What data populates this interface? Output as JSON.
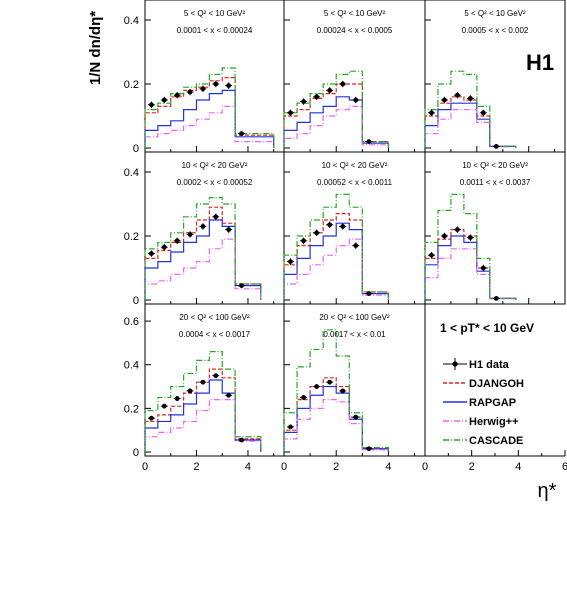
{
  "figure": {
    "y_axis_label": "1/N dn/dη*",
    "x_axis_label": "η*",
    "experiment_logo": "H1",
    "pt_range_text": "1 < pT* < 10 GeV"
  },
  "legend": [
    {
      "key": "h1",
      "label": "H1 data",
      "color": "#000000",
      "style": "points"
    },
    {
      "key": "djangoh",
      "label": "DJANGOH",
      "color": "#dd2222",
      "style": "dashed"
    },
    {
      "key": "rapgap",
      "label": "RAPGAP",
      "color": "#2233dd",
      "style": "solid"
    },
    {
      "key": "herwig",
      "label": "Herwig++",
      "color": "#ee66ee",
      "style": "dashdot"
    },
    {
      "key": "cascade",
      "label": "CASCADE",
      "color": "#22aa22",
      "style": "dashdot"
    }
  ],
  "chart_data": [
    {
      "type": "line",
      "q2_text": "5 < Q² < 10 GeV²",
      "x_text": "0.0001 < x < 0.00024",
      "bin_edges": [
        0,
        0.5,
        1,
        1.5,
        2,
        2.5,
        3,
        3.5,
        4,
        4.5,
        5
      ],
      "ylim": [
        0,
        0.45
      ],
      "yticks": [
        0,
        0.2,
        0.4
      ],
      "xticks": [
        0,
        2,
        4
      ],
      "series": [
        {
          "key": "h1",
          "values": [
            0.135,
            0.15,
            0.165,
            0.175,
            0.185,
            0.2,
            0.195,
            0.045,
            null,
            null
          ],
          "errors": [
            0.01,
            0.01,
            0.01,
            0.01,
            0.01,
            0.01,
            0.01,
            0.004,
            null,
            null
          ]
        },
        {
          "key": "djangoh",
          "values": [
            0.11,
            0.13,
            0.16,
            0.18,
            0.19,
            0.21,
            0.22,
            0.04,
            0.04,
            0.04
          ]
        },
        {
          "key": "rapgap",
          "values": [
            0.055,
            0.07,
            0.085,
            0.12,
            0.15,
            0.17,
            0.18,
            0.035,
            0.035,
            0.035
          ]
        },
        {
          "key": "herwig",
          "values": [
            0.035,
            0.045,
            0.055,
            0.07,
            0.09,
            0.11,
            0.13,
            0.02,
            0.02,
            0.02
          ]
        },
        {
          "key": "cascade",
          "values": [
            0.12,
            0.14,
            0.17,
            0.19,
            0.2,
            0.23,
            0.25,
            0.045,
            0.045,
            0.045
          ]
        }
      ]
    },
    {
      "type": "line",
      "q2_text": "5 < Q² < 10 GeV²",
      "x_text": "0.00024 < x < 0.0005",
      "bin_edges": [
        0,
        0.5,
        1,
        1.5,
        2,
        2.5,
        3,
        3.5,
        4,
        4.5,
        5
      ],
      "ylim": [
        0,
        0.45
      ],
      "yticks": [
        0,
        0.2,
        0.4
      ],
      "xticks": [
        0,
        2,
        4
      ],
      "series": [
        {
          "key": "h1",
          "values": [
            0.11,
            0.145,
            0.16,
            0.18,
            0.2,
            0.15,
            0.02
          ],
          "errors": [
            0.01,
            0.01,
            0.01,
            0.01,
            0.01,
            0.01,
            0.004
          ]
        },
        {
          "key": "djangoh",
          "values": [
            0.1,
            0.12,
            0.155,
            0.17,
            0.2,
            0.2,
            0.02,
            0.02
          ]
        },
        {
          "key": "rapgap",
          "values": [
            0.055,
            0.08,
            0.11,
            0.13,
            0.16,
            0.15,
            0.015,
            0.015
          ]
        },
        {
          "key": "herwig",
          "values": [
            0.03,
            0.045,
            0.07,
            0.1,
            0.12,
            0.13,
            0.01,
            0.01
          ]
        },
        {
          "key": "cascade",
          "values": [
            0.11,
            0.14,
            0.17,
            0.2,
            0.23,
            0.24,
            0.02,
            0.02
          ]
        }
      ]
    },
    {
      "type": "line",
      "q2_text": "5 < Q² < 10 GeV²",
      "x_text": "0.0005 < x < 0.002",
      "bin_edges": [
        0,
        0.5,
        1,
        1.5,
        2,
        2.5,
        3,
        3.5,
        4,
        4.5,
        5
      ],
      "ylim": [
        0,
        0.45
      ],
      "yticks": [
        0,
        0.2,
        0.4
      ],
      "xticks": [
        0,
        2,
        4
      ],
      "series": [
        {
          "key": "h1",
          "values": [
            0.11,
            0.15,
            0.165,
            0.155,
            0.11,
            0.005
          ],
          "errors": [
            0.01,
            0.01,
            0.01,
            0.01,
            0.01,
            0.003
          ]
        },
        {
          "key": "djangoh",
          "values": [
            0.1,
            0.14,
            0.16,
            0.15,
            0.1,
            0.005,
            0.005
          ]
        },
        {
          "key": "rapgap",
          "values": [
            0.07,
            0.12,
            0.14,
            0.14,
            0.09,
            0.005,
            0.005
          ]
        },
        {
          "key": "herwig",
          "values": [
            0.045,
            0.09,
            0.12,
            0.12,
            0.08,
            0.004,
            0.004
          ]
        },
        {
          "key": "cascade",
          "values": [
            0.12,
            0.2,
            0.24,
            0.23,
            0.13,
            0.005,
            0.005
          ]
        }
      ]
    },
    {
      "type": "line",
      "q2_text": "10 < Q² < 20 GeV²",
      "x_text": "0.0002 < x < 0.00052",
      "bin_edges": [
        0,
        0.5,
        1,
        1.5,
        2,
        2.5,
        3,
        3.5,
        4,
        4.5,
        5
      ],
      "ylim": [
        0,
        0.45
      ],
      "yticks": [
        0,
        0.2,
        0.4
      ],
      "xticks": [
        0,
        2,
        4
      ],
      "series": [
        {
          "key": "h1",
          "values": [
            0.145,
            0.165,
            0.185,
            0.205,
            0.23,
            0.26,
            0.22,
            0.045
          ],
          "errors": [
            0.01,
            0.01,
            0.01,
            0.01,
            0.01,
            0.01,
            0.01,
            0.004
          ]
        },
        {
          "key": "djangoh",
          "values": [
            0.13,
            0.155,
            0.18,
            0.21,
            0.25,
            0.29,
            0.24,
            0.05,
            0.05
          ]
        },
        {
          "key": "rapgap",
          "values": [
            0.1,
            0.12,
            0.15,
            0.18,
            0.2,
            0.25,
            0.23,
            0.045,
            0.045
          ]
        },
        {
          "key": "herwig",
          "values": [
            0.05,
            0.06,
            0.08,
            0.1,
            0.12,
            0.16,
            0.19,
            0.035,
            0.035
          ]
        },
        {
          "key": "cascade",
          "values": [
            0.16,
            0.18,
            0.21,
            0.26,
            0.3,
            0.32,
            0.3,
            0.05,
            0.05
          ]
        }
      ]
    },
    {
      "type": "line",
      "q2_text": "10 < Q² < 20 GeV²",
      "x_text": "0.00052 < x < 0.0011",
      "bin_edges": [
        0,
        0.5,
        1,
        1.5,
        2,
        2.5,
        3,
        3.5,
        4,
        4.5,
        5
      ],
      "ylim": [
        0,
        0.45
      ],
      "yticks": [
        0,
        0.2,
        0.4
      ],
      "xticks": [
        0,
        2,
        4
      ],
      "series": [
        {
          "key": "h1",
          "values": [
            0.12,
            0.185,
            0.21,
            0.235,
            0.23,
            0.17,
            0.02
          ],
          "errors": [
            0.01,
            0.01,
            0.01,
            0.01,
            0.01,
            0.01,
            0.004
          ]
        },
        {
          "key": "djangoh",
          "values": [
            0.11,
            0.17,
            0.21,
            0.25,
            0.27,
            0.25,
            0.025,
            0.025
          ]
        },
        {
          "key": "rapgap",
          "values": [
            0.08,
            0.13,
            0.17,
            0.2,
            0.24,
            0.22,
            0.02,
            0.02
          ]
        },
        {
          "key": "herwig",
          "values": [
            0.05,
            0.08,
            0.11,
            0.14,
            0.17,
            0.19,
            0.015,
            0.015
          ]
        },
        {
          "key": "cascade",
          "values": [
            0.14,
            0.2,
            0.25,
            0.29,
            0.33,
            0.29,
            0.025,
            0.025
          ]
        }
      ]
    },
    {
      "type": "line",
      "q2_text": "10 < Q² < 20 GeV²",
      "x_text": "0.0011 < x < 0.0037",
      "bin_edges": [
        0,
        0.5,
        1,
        1.5,
        2,
        2.5,
        3,
        3.5,
        4,
        4.5,
        5
      ],
      "ylim": [
        0,
        0.45
      ],
      "yticks": [
        0,
        0.2,
        0.4
      ],
      "xticks": [
        0,
        2,
        4
      ],
      "series": [
        {
          "key": "h1",
          "values": [
            0.14,
            0.2,
            0.22,
            0.195,
            0.1,
            0.005
          ],
          "errors": [
            0.01,
            0.01,
            0.01,
            0.01,
            0.01,
            0.003
          ]
        },
        {
          "key": "djangoh",
          "values": [
            0.13,
            0.19,
            0.22,
            0.2,
            0.1,
            0.005,
            0.005
          ]
        },
        {
          "key": "rapgap",
          "values": [
            0.11,
            0.17,
            0.2,
            0.18,
            0.09,
            0.005,
            0.005
          ]
        },
        {
          "key": "herwig",
          "values": [
            0.07,
            0.13,
            0.16,
            0.16,
            0.08,
            0.004,
            0.004
          ]
        },
        {
          "key": "cascade",
          "values": [
            0.18,
            0.28,
            0.33,
            0.27,
            0.13,
            0.005,
            0.005
          ]
        }
      ]
    },
    {
      "type": "line",
      "q2_text": "20 < Q² < 100 GeV²",
      "x_text": "0.0004 < x < 0.0017",
      "bin_edges": [
        0,
        0.5,
        1,
        1.5,
        2,
        2.5,
        3,
        3.5,
        4,
        4.5,
        5
      ],
      "ylim": [
        0,
        0.66
      ],
      "yticks": [
        0,
        0.2,
        0.4,
        0.6
      ],
      "xticks": [
        0,
        2,
        4
      ],
      "series": [
        {
          "key": "h1",
          "values": [
            0.155,
            0.21,
            0.245,
            0.28,
            0.32,
            0.35,
            0.26,
            0.055
          ],
          "errors": [
            0.01,
            0.01,
            0.01,
            0.01,
            0.01,
            0.01,
            0.01,
            0.005
          ]
        },
        {
          "key": "djangoh",
          "values": [
            0.14,
            0.17,
            0.21,
            0.27,
            0.32,
            0.38,
            0.34,
            0.06,
            0.06
          ]
        },
        {
          "key": "rapgap",
          "values": [
            0.11,
            0.14,
            0.17,
            0.22,
            0.27,
            0.33,
            0.27,
            0.055,
            0.055
          ]
        },
        {
          "key": "herwig",
          "values": [
            0.07,
            0.09,
            0.11,
            0.14,
            0.19,
            0.24,
            0.24,
            0.05,
            0.05
          ]
        },
        {
          "key": "cascade",
          "values": [
            0.19,
            0.25,
            0.3,
            0.36,
            0.42,
            0.46,
            0.38,
            0.07,
            0.07
          ]
        }
      ]
    },
    {
      "type": "line",
      "q2_text": "20 < Q² < 100 GeV²",
      "x_text": "0.0017 < x < 0.01",
      "bin_edges": [
        0,
        0.5,
        1,
        1.5,
        2,
        2.5,
        3,
        3.5,
        4,
        4.5,
        5
      ],
      "ylim": [
        0,
        0.66
      ],
      "yticks": [
        0,
        0.2,
        0.4,
        0.6
      ],
      "xticks": [
        0,
        2,
        4
      ],
      "series": [
        {
          "key": "h1",
          "values": [
            0.115,
            0.25,
            0.3,
            0.32,
            0.28,
            0.16,
            0.015
          ],
          "errors": [
            0.01,
            0.01,
            0.01,
            0.01,
            0.01,
            0.01,
            0.003
          ]
        },
        {
          "key": "djangoh",
          "values": [
            0.1,
            0.24,
            0.3,
            0.34,
            0.3,
            0.16,
            0.015,
            0.015
          ]
        },
        {
          "key": "rapgap",
          "values": [
            0.09,
            0.2,
            0.26,
            0.3,
            0.27,
            0.15,
            0.015,
            0.015
          ]
        },
        {
          "key": "herwig",
          "values": [
            0.06,
            0.15,
            0.2,
            0.24,
            0.23,
            0.13,
            0.01,
            0.01
          ]
        },
        {
          "key": "cascade",
          "values": [
            0.18,
            0.39,
            0.47,
            0.56,
            0.44,
            0.18,
            0.02,
            0.02
          ]
        }
      ]
    }
  ]
}
